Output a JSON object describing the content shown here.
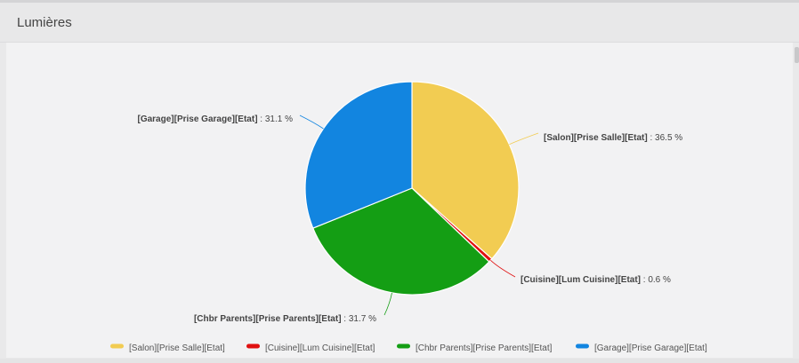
{
  "panel": {
    "title": "Lumières"
  },
  "chart_data": {
    "type": "pie",
    "slices": [
      {
        "name": "[Salon][Prise Salle][Etat]",
        "value": 36.5,
        "color": "#f2cc52"
      },
      {
        "name": "[Cuisine][Lum Cuisine][Etat]",
        "value": 0.6,
        "color": "#e01010"
      },
      {
        "name": "[Chbr Parents][Prise Parents][Etat]",
        "value": 31.7,
        "color": "#149e14"
      },
      {
        "name": "[Garage][Prise Garage][Etat]",
        "value": 31.1,
        "color": "#1285e0"
      }
    ],
    "value_suffix": " %",
    "legend_position": "bottom"
  }
}
